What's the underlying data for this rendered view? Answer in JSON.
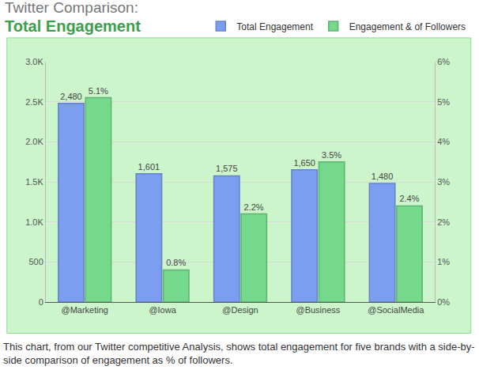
{
  "chart_data": {
    "type": "bar",
    "title": "Twitter Comparison:",
    "subtitle": "Total Engagement",
    "annotations": [
      "This chart, from our Twitter competitive Analysis, shows total engagement for five brands with a side-by-side comparison of engagement as % of followers."
    ],
    "categories": [
      "@Marketing",
      "@Iowa",
      "@Design",
      "@Business",
      "@SocialMedia"
    ],
    "series": [
      {
        "name": "Total Engagement",
        "color": "#7b9ef0",
        "values": [
          2480,
          1601,
          1575,
          1650,
          1480
        ],
        "value_labels": [
          "2,480",
          "1,601",
          "1,575",
          "1,650",
          "1,480"
        ]
      },
      {
        "name": "Engagement & of Followers",
        "color": "#74d98a",
        "axis": "y2",
        "values": [
          5.1,
          0.8,
          2.2,
          3.5,
          2.4
        ],
        "value_labels": [
          "5.1%",
          "0.8%",
          "2.2%",
          "3.5%",
          "2.4%"
        ]
      }
    ],
    "ylim": [
      0,
      3000
    ],
    "yticks": [
      0,
      500,
      {
        "value": 1000,
        "label": "1.0K"
      },
      {
        "value": 1500,
        "label": "1.5K"
      },
      {
        "value": 2000,
        "label": "2.0K"
      },
      {
        "value": 2500,
        "label": "2.5K"
      },
      {
        "value": 3000,
        "label": "3.0K"
      }
    ],
    "y2lim": [
      0,
      6
    ],
    "y2ticks": [
      {
        "value": 0,
        "label": "0%"
      },
      {
        "value": 1,
        "label": "1%"
      },
      {
        "value": 2,
        "label": "2%"
      },
      {
        "value": 3,
        "label": "3%"
      },
      {
        "value": 4,
        "label": "4%"
      },
      {
        "value": 5,
        "label": "5%"
      },
      {
        "value": 6,
        "label": "6%"
      }
    ],
    "grid": true,
    "legend": "top right",
    "data_labels": true
  }
}
